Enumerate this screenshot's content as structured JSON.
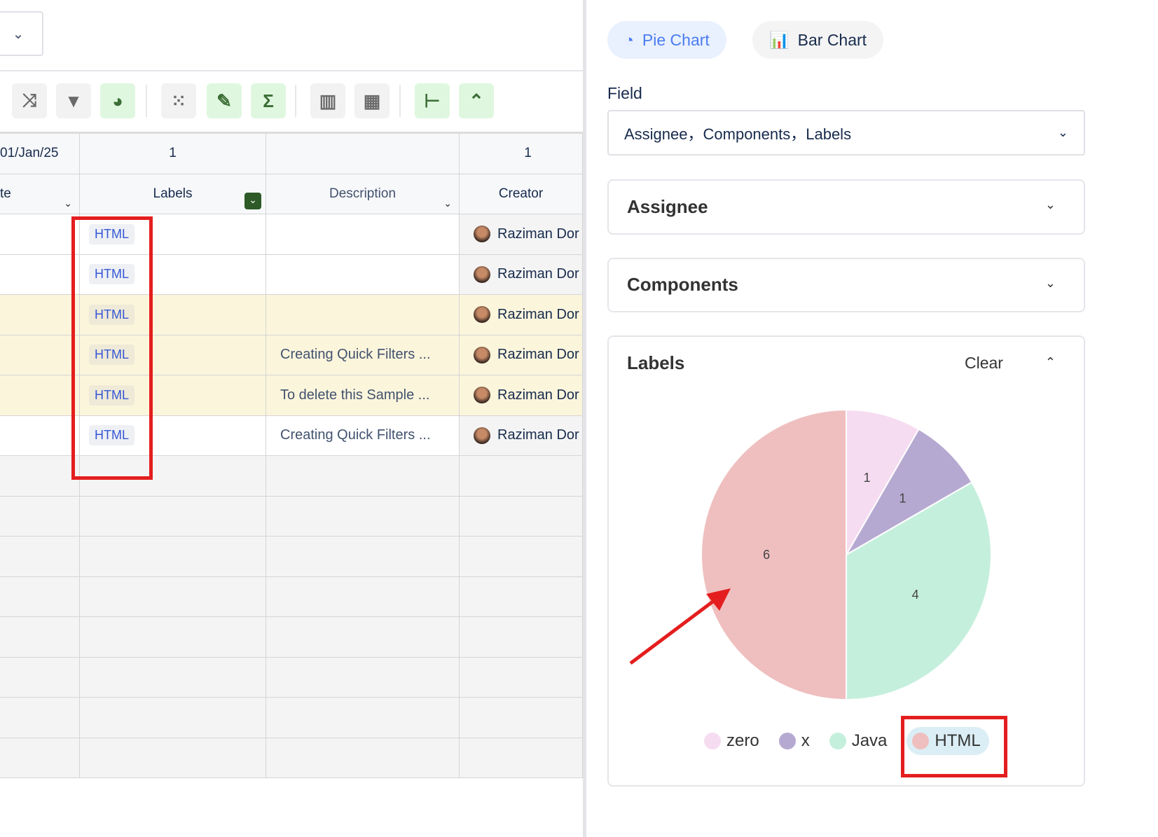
{
  "toolbar": {
    "icons": [
      "shuffle-icon",
      "filter-icon",
      "pie-chart-icon",
      "grid-dots-icon",
      "paint-brush-icon",
      "sigma-icon",
      "columns-settings-icon",
      "tiles-icon",
      "tree-icon",
      "collapse-up-icon"
    ]
  },
  "table": {
    "summary": [
      "01/Jan/25",
      "1",
      "",
      "1"
    ],
    "headers": [
      "te",
      "Labels",
      "Description",
      "Creator"
    ],
    "rows": [
      {
        "label": "HTML",
        "description": "",
        "creator": "Raziman Dor",
        "highlight": false
      },
      {
        "label": "HTML",
        "description": "",
        "creator": "Raziman Dor",
        "highlight": false
      },
      {
        "label": "HTML",
        "description": "",
        "creator": "Raziman Dor",
        "highlight": true
      },
      {
        "label": "HTML",
        "description": "Creating Quick Filters ...",
        "creator": "Raziman Dor",
        "highlight": true
      },
      {
        "label": "HTML",
        "description": "To delete this Sample ...",
        "creator": "Raziman Dor",
        "highlight": true
      },
      {
        "label": "HTML",
        "description": "Creating Quick Filters ...",
        "creator": "Raziman Dor",
        "highlight": false
      }
    ]
  },
  "side": {
    "tabs": [
      {
        "label": "Pie Chart",
        "active": true
      },
      {
        "label": "Bar Chart",
        "active": false
      }
    ],
    "field_label": "Field",
    "field_value": "Assignee，Components，Labels",
    "sections": {
      "assignee": "Assignee",
      "components": "Components",
      "labels": "Labels",
      "clear": "Clear"
    }
  },
  "chart_data": {
    "type": "pie",
    "categories": [
      "zero",
      "x",
      "Java",
      "HTML"
    ],
    "values": [
      1,
      1,
      4,
      6
    ],
    "colors": [
      "#f6dcf1",
      "#b6a9d1",
      "#c5efdd",
      "#efbfbf"
    ],
    "legend": "bottom",
    "selected": "HTML"
  }
}
